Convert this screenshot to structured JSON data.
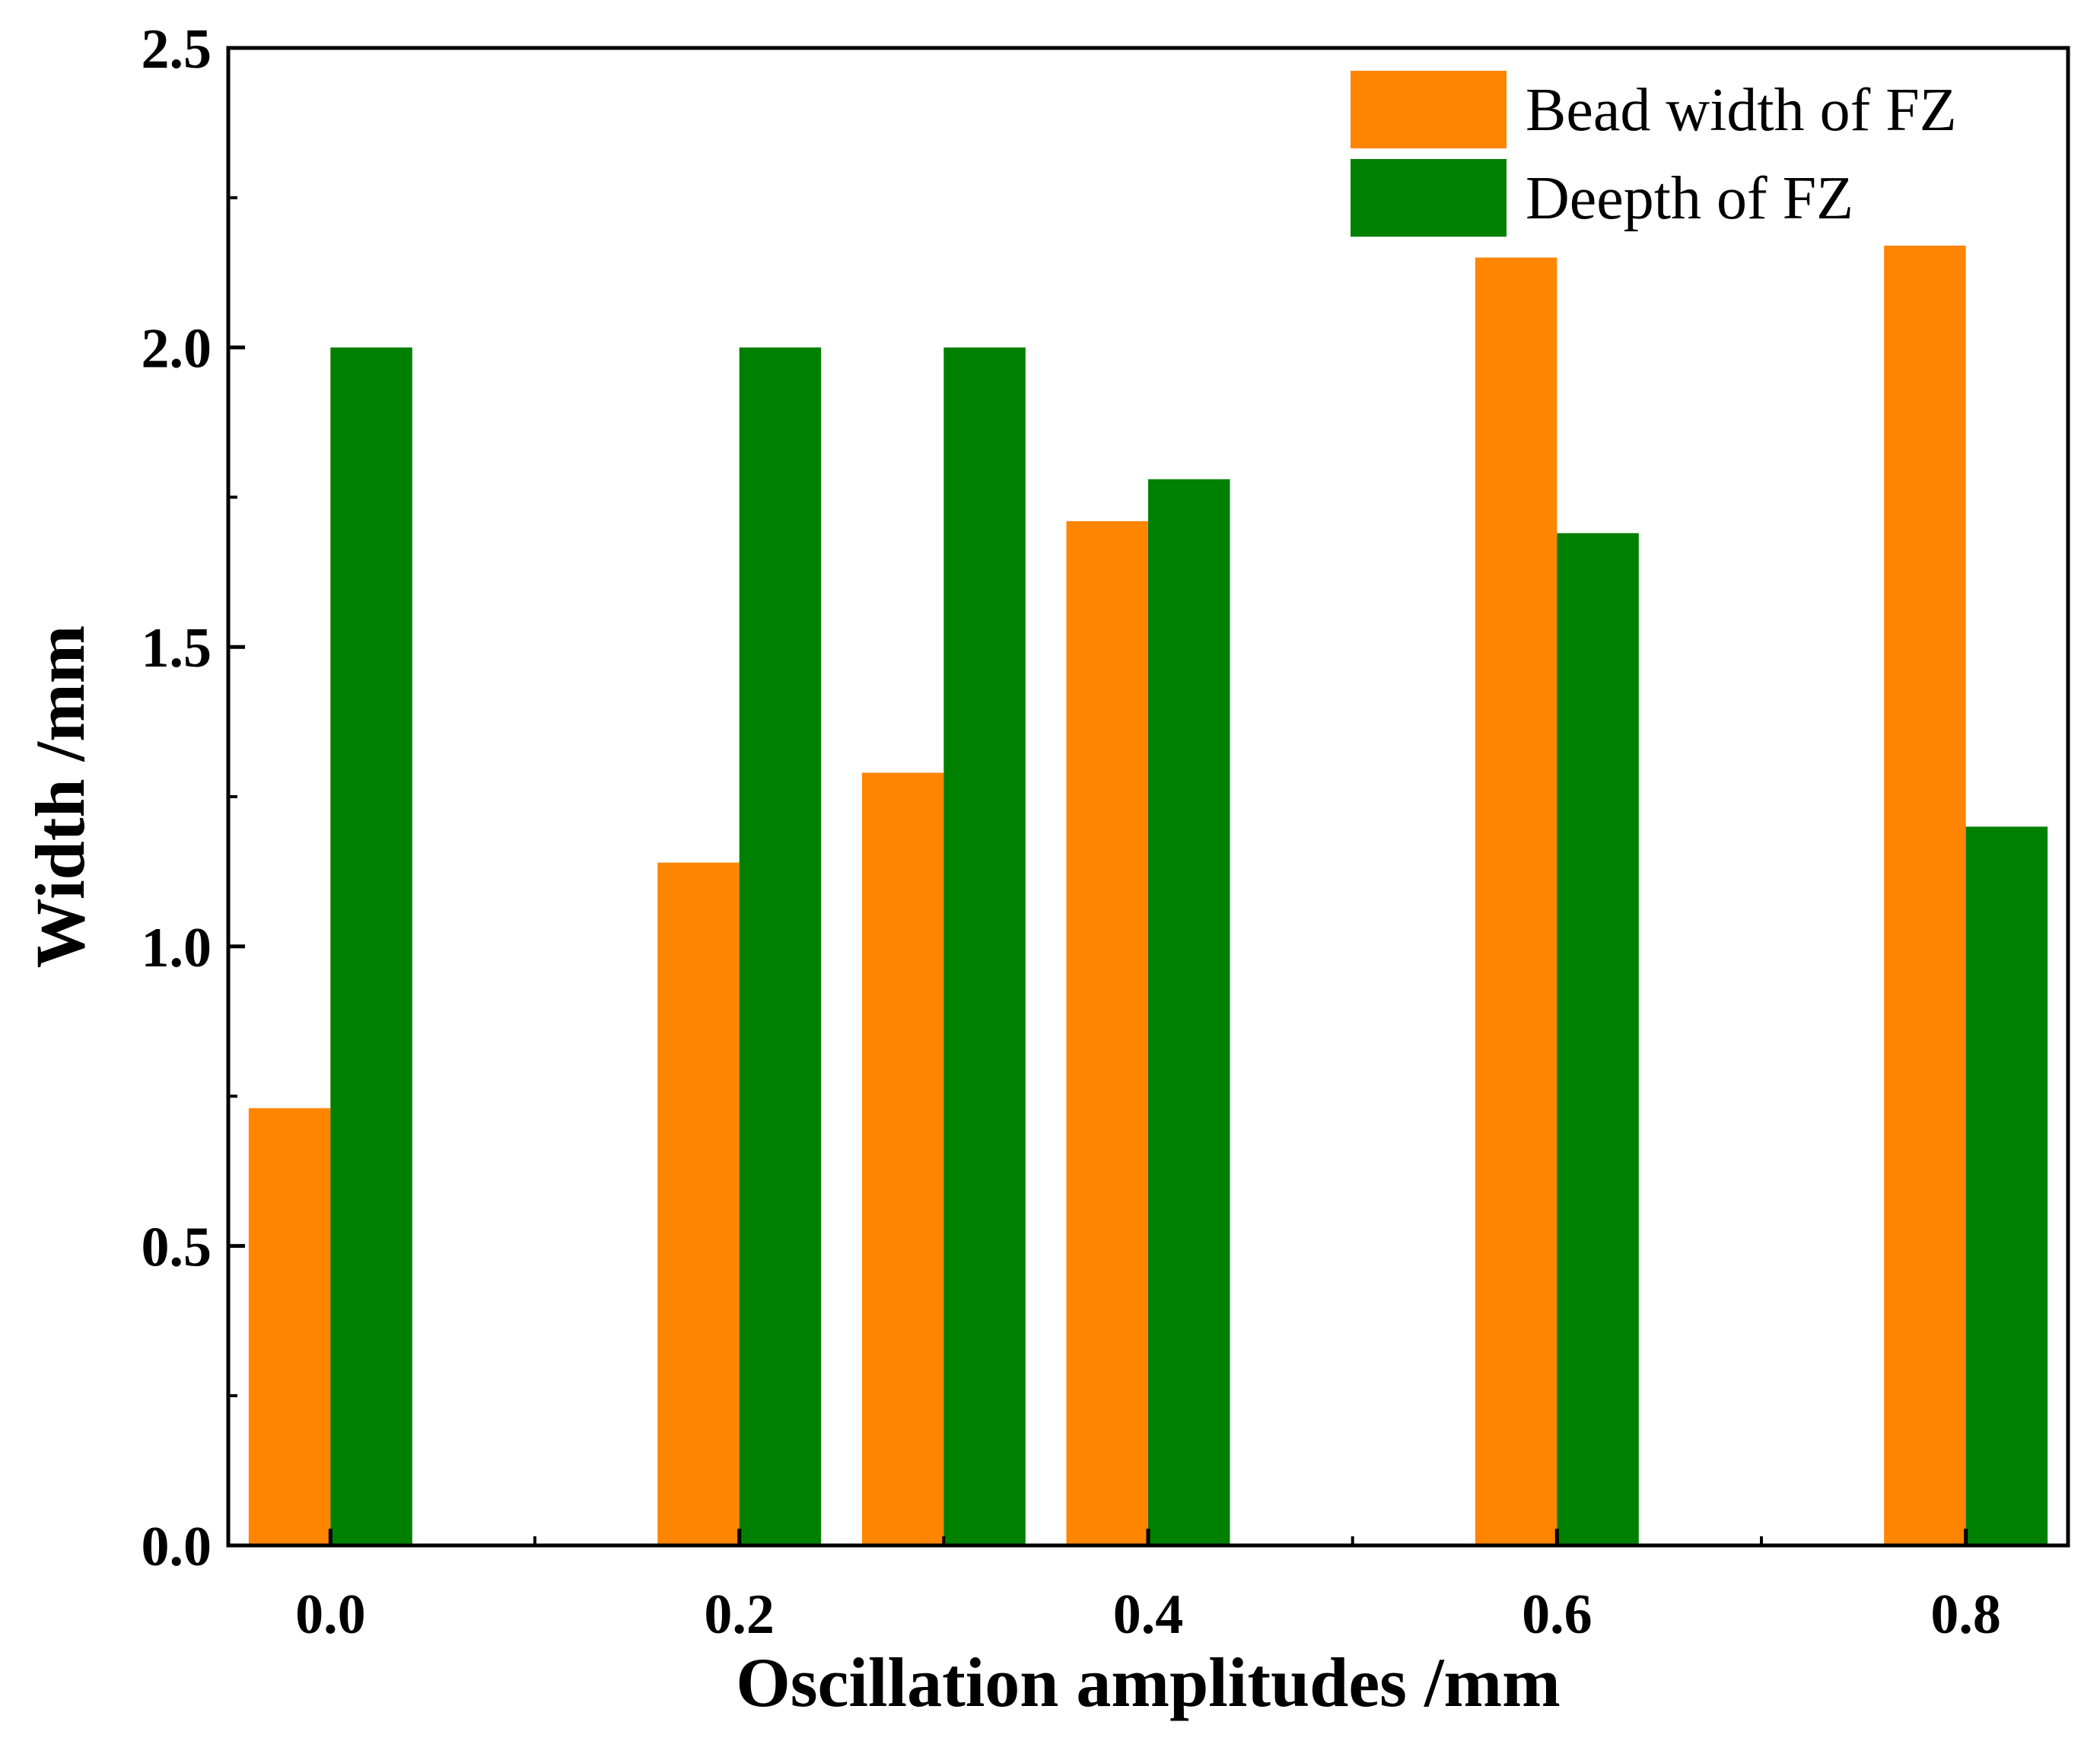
{
  "colors": {
    "bead_width": "#FF8400",
    "depth": "#008000",
    "axis": "#000000",
    "background": "#FFFFFF"
  },
  "chart_data": {
    "type": "bar",
    "title": "",
    "xlabel": "Oscillation amplitudes /mm",
    "ylabel": "Width /mm",
    "xlim": [
      -0.05,
      0.85
    ],
    "ylim": [
      0,
      2.5
    ],
    "x_ticks": [
      0.0,
      0.2,
      0.4,
      0.6,
      0.8
    ],
    "x_tick_labels": [
      "0.0",
      "0.2",
      "0.4",
      "0.6",
      "0.8"
    ],
    "y_ticks": [
      0.0,
      0.5,
      1.0,
      1.5,
      2.0,
      2.5
    ],
    "y_tick_labels": [
      "0.0",
      "0.5",
      "1.0",
      "1.5",
      "2.0",
      "2.5"
    ],
    "x": [
      0.0,
      0.2,
      0.3,
      0.4,
      0.6,
      0.8
    ],
    "bar_width": 0.04,
    "grid": false,
    "legend_position": "top-right",
    "series": [
      {
        "name": "Bead width of FZ",
        "color": "#FF8400",
        "values": [
          0.73,
          1.14,
          1.29,
          1.71,
          2.15,
          2.17
        ]
      },
      {
        "name": "Deepth of FZ",
        "color": "#008000",
        "values": [
          2.0,
          2.0,
          2.0,
          1.78,
          1.69,
          1.2
        ]
      }
    ]
  }
}
